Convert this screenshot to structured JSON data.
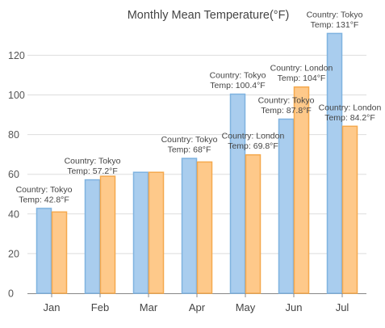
{
  "chart_data": {
    "type": "bar",
    "title": "Monthly Mean Temperature(°F)",
    "categories": [
      "Jan",
      "Feb",
      "Mar",
      "Apr",
      "May",
      "Jun",
      "Jul"
    ],
    "series": [
      {
        "name": "Tokyo",
        "color": "#a9cdee",
        "border": "#7fb3e0",
        "values": [
          42.8,
          57.2,
          61,
          68,
          100.4,
          87.8,
          131
        ]
      },
      {
        "name": "London",
        "color": "#fec98a",
        "border": "#f5a94e",
        "values": [
          41,
          59,
          61,
          66.2,
          69.8,
          104,
          84.2
        ]
      }
    ],
    "ylim": [
      0,
      135
    ],
    "yticks": [
      0,
      20,
      40,
      60,
      80,
      100,
      120
    ],
    "grid": true,
    "annotations": [
      {
        "series": "Tokyo",
        "category": "Jan",
        "lines": [
          "Country: Tokyo",
          "Temp: 42.8°F"
        ]
      },
      {
        "series": "Tokyo",
        "category": "Feb",
        "lines": [
          "Country: Tokyo",
          "Temp: 57.2°F"
        ]
      },
      {
        "series": "Tokyo",
        "category": "Apr",
        "lines": [
          "Country: Tokyo",
          "Temp: 68°F"
        ]
      },
      {
        "series": "Tokyo",
        "category": "May",
        "lines": [
          "Country: Tokyo",
          "Temp: 100.4°F"
        ]
      },
      {
        "series": "London",
        "category": "May",
        "lines": [
          "Country: London",
          "Temp: 69.8°F"
        ]
      },
      {
        "series": "Tokyo",
        "category": "Jun",
        "lines": [
          "Country: Tokyo",
          "Temp: 87.8°F"
        ]
      },
      {
        "series": "London",
        "category": "Jun",
        "lines": [
          "Country: London",
          "Temp: 104°F"
        ]
      },
      {
        "series": "Tokyo",
        "category": "Jul",
        "lines": [
          "Country: Tokyo",
          "Temp: 131°F"
        ]
      },
      {
        "series": "London",
        "category": "Jul",
        "lines": [
          "Country: London",
          "Temp: 84.2°F"
        ]
      }
    ]
  }
}
